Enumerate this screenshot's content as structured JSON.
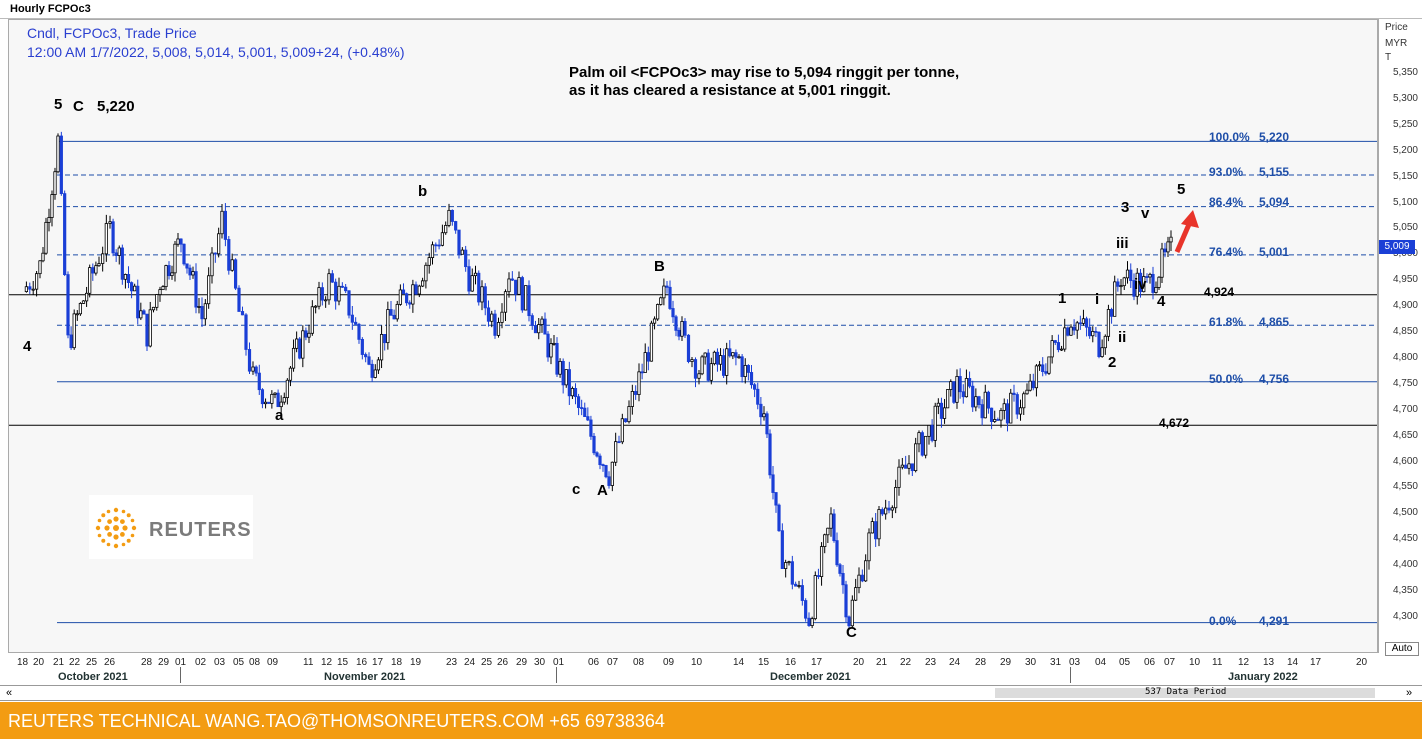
{
  "window_title": "Hourly FCPOc3",
  "legend": {
    "line1": "Cndl, FCPOc3, Trade Price",
    "line2": "12:00 AM 1/7/2022, 5,008, 5,014, 5,001, 5,009+24, (+0.48%)"
  },
  "annotation": {
    "line1": "Palm oil <FCPOc3> may rise to 5,094 ringgit per tonne,",
    "line2": "as it has cleared a resistance at 5,001 ringgit."
  },
  "y_axis": {
    "title_line1": "Price",
    "title_line2": "MYR",
    "title_line3": "T",
    "ticks": [
      "5,350",
      "5,300",
      "5,250",
      "5,200",
      "5,150",
      "5,100",
      "5,050",
      "5,000",
      "4,950",
      "4,900",
      "4,850",
      "4,800",
      "4,750",
      "4,700",
      "4,650",
      "4,600",
      "4,550",
      "4,500",
      "4,450",
      "4,400",
      "4,350",
      "4,300"
    ],
    "current_price_badge": "5,009"
  },
  "x_axis": {
    "ticks": [
      "18",
      "20",
      "21",
      "22",
      "25",
      "26",
      "28",
      "29",
      "01",
      "02",
      "03",
      "05",
      "08",
      "09",
      "11",
      "12",
      "15",
      "16",
      "17",
      "18",
      "19",
      "23",
      "24",
      "25",
      "26",
      "29",
      "30",
      "01",
      "06",
      "07",
      "08",
      "09",
      "10",
      "14",
      "15",
      "16",
      "17",
      "20",
      "21",
      "22",
      "23",
      "24",
      "28",
      "29",
      "30",
      "31",
      "03",
      "04",
      "05",
      "06",
      "07",
      "10",
      "11",
      "12",
      "13",
      "14",
      "17",
      "20"
    ],
    "months": [
      "October 2021",
      "November 2021",
      "December 2021",
      "January 2022"
    ]
  },
  "wave_labels": {
    "top_5": "5",
    "top_C": "C",
    "top_value": "5,220",
    "left_4": "4",
    "a": "a",
    "b": "b",
    "c": "c",
    "A": "A",
    "B": "B",
    "C": "C",
    "one": "1",
    "two": "2",
    "three": "3",
    "four": "4",
    "five": "5",
    "i": "i",
    "ii": "ii",
    "iii": "iii",
    "iv": "iv",
    "v": "v"
  },
  "fib_labels": {
    "f100": "100.0%",
    "v100": "5,220",
    "f93": "93.0%",
    "v93": "5,155",
    "f864": "86.4%",
    "v864": "5,094",
    "f764": "76.4%",
    "v764": "5,001",
    "f618": "61.8%",
    "v618": "4,865",
    "f50": "50.0%",
    "v50": "4,756",
    "f0": "0.0%",
    "v0": "4,291"
  },
  "levels": {
    "l4924": "4,924",
    "l4672": "4,672"
  },
  "logo": {
    "text": "REUTERS"
  },
  "scrollbar": {
    "period": "537 Data Period",
    "left_btn": "«",
    "right_btn": "»",
    "auto": "Auto"
  },
  "footer": {
    "text": "REUTERS TECHNICAL  WANG.TAO@THOMSONREUTERS.COM  +65 69738364"
  },
  "colors": {
    "up_candle": "#000000",
    "down_candle": "#1a3fd6",
    "fib_line": "#1e4ea8",
    "footer_bg": "#f39c12",
    "arrow": "#e8342a"
  },
  "chart_data": {
    "type": "candlestick",
    "title": "Hourly FCPOc3",
    "ylabel": "Price MYR T",
    "ylim": [
      4270,
      5390
    ],
    "series_path": [
      [
        "18 Oct",
        4930
      ],
      [
        "20 Oct",
        4980
      ],
      [
        "21 Oct",
        5220
      ],
      [
        "22 Oct",
        4830
      ],
      [
        "25 Oct",
        5000
      ],
      [
        "26 Oct",
        5050
      ],
      [
        "28 Oct",
        4850
      ],
      [
        "29 Oct",
        4950
      ],
      [
        "01 Nov",
        5030
      ],
      [
        "02 Nov",
        4880
      ],
      [
        "03 Nov",
        5070
      ],
      [
        "05 Nov",
        4890
      ],
      [
        "08 Nov",
        4760
      ],
      [
        "09 Nov",
        4710
      ],
      [
        "11 Nov",
        4870
      ],
      [
        "12 Nov",
        4950
      ],
      [
        "15 Nov",
        4900
      ],
      [
        "16 Nov",
        4780
      ],
      [
        "17 Nov",
        4880
      ],
      [
        "18 Nov",
        4950
      ],
      [
        "19 Nov",
        5070
      ],
      [
        "23 Nov",
        4960
      ],
      [
        "24 Nov",
        4870
      ],
      [
        "25 Nov",
        4970
      ],
      [
        "26 Nov",
        4900
      ],
      [
        "29 Nov",
        4850
      ],
      [
        "30 Nov",
        4790
      ],
      [
        "01 Dec",
        4640
      ],
      [
        "06 Dec",
        4580
      ],
      [
        "07 Dec",
        4760
      ],
      [
        "08 Dec",
        4940
      ],
      [
        "09 Dec",
        4830
      ],
      [
        "10 Dec",
        4780
      ],
      [
        "14 Dec",
        4800
      ],
      [
        "15 Dec",
        4700
      ],
      [
        "16 Dec",
        4440
      ],
      [
        "17 Dec",
        4300
      ],
      [
        "20 Dec",
        4490
      ],
      [
        "21 Dec",
        4300
      ],
      [
        "22 Dec",
        4450
      ],
      [
        "23 Dec",
        4530
      ],
      [
        "24 Dec",
        4600
      ],
      [
        "28 Dec",
        4660
      ],
      [
        "29 Dec",
        4750
      ],
      [
        "30 Dec",
        4690
      ],
      [
        "31 Dec",
        4730
      ],
      [
        "03 Jan",
        4880
      ],
      [
        "04 Jan",
        4830
      ],
      [
        "05 Jan",
        4960
      ],
      [
        "06 Jan",
        4940
      ],
      [
        "07 Jan",
        5009
      ]
    ],
    "fibonacci": [
      {
        "label": "100.0%",
        "value": 5220
      },
      {
        "label": "93.0%",
        "value": 5155
      },
      {
        "label": "86.4%",
        "value": 5094
      },
      {
        "label": "76.4%",
        "value": 5001
      },
      {
        "label": "61.8%",
        "value": 4865
      },
      {
        "label": "50.0%",
        "value": 4756
      },
      {
        "label": "0.0%",
        "value": 4291
      }
    ],
    "horizontal_levels": [
      4924,
      4672
    ],
    "last_candle": {
      "time": "12:00 AM 1/7/2022",
      "open": 5008,
      "high": 5014,
      "low": 5001,
      "close": 5009,
      "change": 24,
      "change_pct": 0.48
    },
    "target": 5094,
    "resistance": 5001
  }
}
